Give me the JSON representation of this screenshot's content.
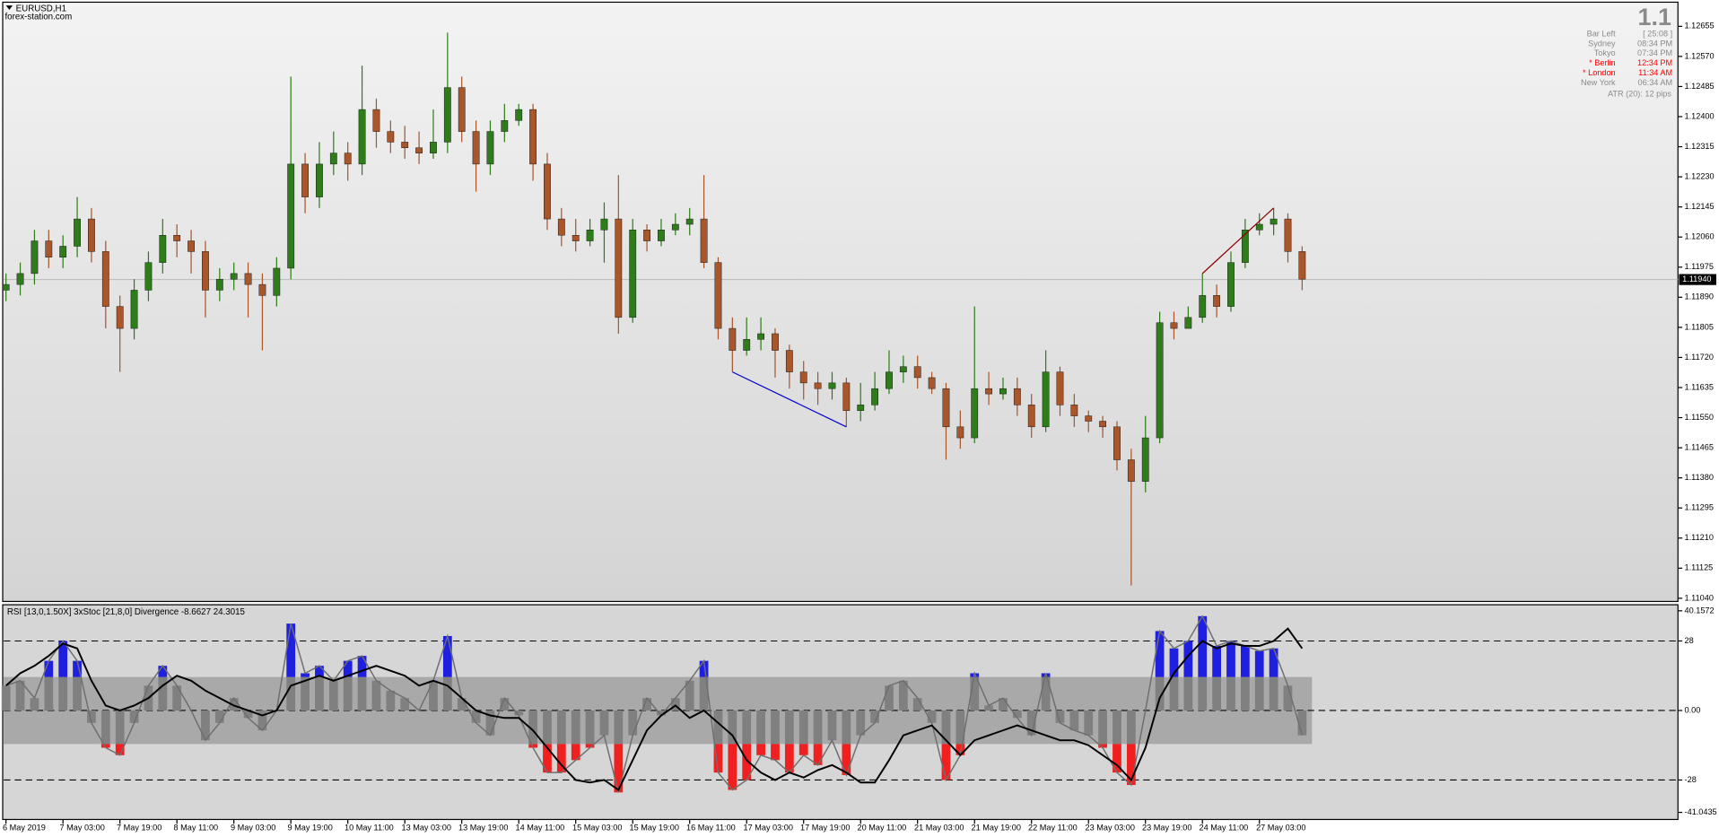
{
  "window": {
    "symbol": "EURUSD,H1",
    "watermark": "forex-station.com"
  },
  "info_panel": {
    "big": "1.1",
    "rows": [
      {
        "label": "Bar Left",
        "value": "[ 25:08 ]",
        "color": "#8a8a8a"
      },
      {
        "label": "Sydney",
        "value": "08:34 PM",
        "color": "#8a8a8a"
      },
      {
        "label": "Tokyo",
        "value": "07:34 PM",
        "color": "#8a8a8a"
      },
      {
        "label": "* Berlin",
        "value": "12:34 PM",
        "color": "#ff0000"
      },
      {
        "label": "* London",
        "value": "11:34 AM",
        "color": "#ff0000"
      },
      {
        "label": "New York",
        "value": "06:34 AM",
        "color": "#8a8a8a"
      }
    ],
    "atr": "ATR (20): 12 pips"
  },
  "chart_data": [
    {
      "type": "candlestick",
      "up_color": "#2e7d1a",
      "down_color": "#a8562a",
      "open": [
        1.1191,
        1.11926,
        1.11957,
        1.12049,
        1.12003,
        1.12034,
        1.12111,
        1.12019,
        1.11864,
        1.11802,
        1.1191,
        1.11988,
        1.12065,
        1.12049,
        1.12019,
        1.1191,
        1.11941,
        1.11957,
        1.11926,
        1.11895,
        1.11972,
        1.12266,
        1.12173,
        1.12266,
        1.12297,
        1.12266,
        1.1242,
        1.12358,
        1.12328,
        1.12312,
        1.12297,
        1.12328,
        1.12482,
        1.12358,
        1.12266,
        1.12358,
        1.12389,
        1.1242,
        1.12266,
        1.12111,
        1.12065,
        1.12049,
        1.1208,
        1.12111,
        1.11833,
        1.1208,
        1.12049,
        1.1208,
        1.12096,
        1.12111,
        1.11988,
        1.11802,
        1.1174,
        1.11771,
        1.11787,
        1.1174,
        1.11679,
        1.11648,
        1.11632,
        1.11648,
        1.1157,
        1.11586,
        1.11632,
        1.11679,
        1.11694,
        1.11663,
        1.11632,
        1.11524,
        1.11493,
        1.11632,
        1.11617,
        1.11632,
        1.11586,
        1.11524,
        1.11679,
        1.11586,
        1.11555,
        1.1154,
        1.11524,
        1.11431,
        1.1137,
        1.11493,
        1.11818,
        1.11802,
        1.11833,
        1.11895,
        1.11864,
        1.11988,
        1.1208,
        1.12096,
        1.12111,
        1.12019
      ],
      "high": [
        1.11957,
        1.11988,
        1.1208,
        1.1208,
        1.12065,
        1.12173,
        1.12142,
        1.12049,
        1.11895,
        1.11941,
        1.12019,
        1.12111,
        1.12096,
        1.1208,
        1.12049,
        1.11972,
        1.11988,
        1.11988,
        1.11957,
        1.12003,
        1.12513,
        1.12297,
        1.12328,
        1.12358,
        1.12328,
        1.12544,
        1.12451,
        1.12389,
        1.12374,
        1.12358,
        1.1242,
        1.12637,
        1.12513,
        1.12389,
        1.12389,
        1.12436,
        1.12436,
        1.12436,
        1.12297,
        1.12142,
        1.12111,
        1.12111,
        1.12158,
        1.12235,
        1.12111,
        1.12096,
        1.12111,
        1.12127,
        1.12142,
        1.12235,
        1.12003,
        1.11833,
        1.11833,
        1.11833,
        1.11802,
        1.11756,
        1.1171,
        1.11679,
        1.11679,
        1.11663,
        1.11648,
        1.11679,
        1.1174,
        1.11725,
        1.11725,
        1.11679,
        1.11648,
        1.1157,
        1.11864,
        1.11679,
        1.11663,
        1.11663,
        1.11617,
        1.1174,
        1.11694,
        1.11617,
        1.1157,
        1.11555,
        1.1154,
        1.11462,
        1.11555,
        1.11849,
        1.11849,
        1.11864,
        1.11957,
        1.11926,
        1.12019,
        1.12111,
        1.12127,
        1.12142,
        1.12127,
        1.12034
      ],
      "low": [
        1.11879,
        1.11895,
        1.11926,
        1.11972,
        1.11972,
        1.12003,
        1.11988,
        1.11802,
        1.11679,
        1.11771,
        1.11879,
        1.11957,
        1.12003,
        1.11957,
        1.11833,
        1.11879,
        1.1191,
        1.11833,
        1.1174,
        1.11864,
        1.11941,
        1.12127,
        1.12142,
        1.12235,
        1.12219,
        1.12235,
        1.12312,
        1.12297,
        1.12281,
        1.12266,
        1.12281,
        1.12297,
        1.12328,
        1.12188,
        1.12235,
        1.12328,
        1.12374,
        1.12219,
        1.1208,
        1.12034,
        1.12019,
        1.12034,
        1.11988,
        1.11787,
        1.11818,
        1.12019,
        1.12034,
        1.12065,
        1.12065,
        1.11972,
        1.11771,
        1.11679,
        1.11725,
        1.1174,
        1.11663,
        1.11632,
        1.11601,
        1.11586,
        1.11601,
        1.11524,
        1.1154,
        1.1157,
        1.11617,
        1.11648,
        1.11632,
        1.11617,
        1.11431,
        1.11462,
        1.11478,
        1.11586,
        1.11601,
        1.11555,
        1.11493,
        1.11509,
        1.11555,
        1.11524,
        1.11509,
        1.11493,
        1.11401,
        1.11076,
        1.11339,
        1.11478,
        1.11771,
        1.11802,
        1.11818,
        1.11833,
        1.11849,
        1.11972,
        1.12065,
        1.12065,
        1.11988,
        1.1191
      ],
      "close": [
        1.11926,
        1.11957,
        1.12049,
        1.12003,
        1.12034,
        1.12111,
        1.12019,
        1.11864,
        1.11802,
        1.1191,
        1.11988,
        1.12065,
        1.12049,
        1.12019,
        1.1191,
        1.11941,
        1.11957,
        1.11926,
        1.11895,
        1.11972,
        1.12266,
        1.12173,
        1.12266,
        1.12297,
        1.12266,
        1.1242,
        1.12358,
        1.12328,
        1.12312,
        1.12297,
        1.12328,
        1.12482,
        1.12358,
        1.12266,
        1.12358,
        1.12389,
        1.1242,
        1.12266,
        1.12111,
        1.12065,
        1.12049,
        1.1208,
        1.12111,
        1.11833,
        1.1208,
        1.12049,
        1.1208,
        1.12096,
        1.12111,
        1.11988,
        1.11802,
        1.1174,
        1.11771,
        1.11787,
        1.1174,
        1.11679,
        1.11648,
        1.11632,
        1.11648,
        1.1157,
        1.11586,
        1.11632,
        1.11679,
        1.11694,
        1.11663,
        1.11632,
        1.11524,
        1.11493,
        1.11632,
        1.11617,
        1.11632,
        1.11586,
        1.11524,
        1.11679,
        1.11586,
        1.11555,
        1.1154,
        1.11524,
        1.11431,
        1.1137,
        1.11493,
        1.11818,
        1.11802,
        1.11833,
        1.11895,
        1.11864,
        1.11988,
        1.1208,
        1.12096,
        1.12111,
        1.12019,
        1.11941
      ],
      "ylim": [
        1.11031,
        1.1272
      ],
      "yticks": [
        {
          "value": 1.12655,
          "label": "1.12655"
        },
        {
          "value": 1.1257,
          "label": "1.12570"
        },
        1.12485,
        {
          "value": 1.124,
          "label": "1.12400"
        },
        1.12315,
        {
          "value": 1.1223,
          "label": "1.12230"
        },
        1.12145,
        {
          "value": 1.1206,
          "label": "1.12060"
        },
        1.11975,
        {
          "value": 1.1189,
          "label": "1.11890"
        },
        1.11805,
        {
          "value": 1.1172,
          "label": "1.11720"
        },
        1.11635,
        {
          "value": 1.1155,
          "label": "1.11550"
        },
        1.11465,
        {
          "value": 1.1138,
          "label": "1.11380"
        },
        1.11295,
        {
          "value": 1.1121,
          "label": "1.11210"
        },
        1.11125,
        {
          "value": 1.1104,
          "label": "1.11040"
        }
      ],
      "xticks": [
        {
          "value": 0,
          "label": "6 May 2019"
        },
        {
          "value": 4,
          "label": "7 May 03:00"
        },
        {
          "value": 8,
          "label": "7 May 19:00"
        },
        {
          "value": 12,
          "label": "8 May 11:00"
        },
        {
          "value": 16,
          "label": "9 May 03:00"
        },
        {
          "value": 20,
          "label": "9 May 19:00"
        },
        {
          "value": 24,
          "label": "10 May 11:00"
        },
        {
          "value": 28,
          "label": "13 May 03:00"
        },
        {
          "value": 32,
          "label": "13 May 19:00"
        },
        {
          "value": 36,
          "label": "14 May 11:00"
        },
        {
          "value": 40,
          "label": "15 May 03:00"
        },
        {
          "value": 44,
          "label": "15 May 19:00"
        },
        {
          "value": 48,
          "label": "16 May 11:00"
        },
        {
          "value": 52,
          "label": "17 May 03:00"
        },
        {
          "value": 56,
          "label": "17 May 19:00"
        },
        {
          "value": 60,
          "label": "20 May 11:00"
        },
        {
          "value": 64,
          "label": "21 May 03:00"
        },
        {
          "value": 68,
          "label": "21 May 19:00"
        },
        {
          "value": 72,
          "label": "22 May 11:00"
        },
        {
          "value": 76,
          "label": "23 May 03:00"
        },
        {
          "value": 80,
          "label": "23 May 19:00"
        },
        {
          "value": 84,
          "label": "24 May 11:00"
        },
        {
          "value": 88,
          "label": "27 May 03:00"
        }
      ],
      "current_price": {
        "value": 1.1194,
        "label": "1.11940"
      },
      "divergences": [
        {
          "from": 51,
          "to": 59,
          "at": "low",
          "color": "#0000cc"
        },
        {
          "from": 84,
          "to": 89,
          "at": "high",
          "color": "#8b0000"
        }
      ]
    },
    {
      "type": "histogram-line",
      "title": "RSI [13,0,1.50X] 3xStoc [21,8,0] Divergence -8.6627 24.3015",
      "band": 13.5,
      "band_color": "#a9a9a9",
      "up_color": "#1f1fe0",
      "down_color": "#f02020",
      "bar_color": "#808080",
      "series": [
        {
          "color": "#6e6e6e",
          "values": [
            10,
            12,
            5,
            20,
            28,
            20,
            -5,
            -15,
            -18,
            -5,
            10,
            18,
            10,
            0,
            -12,
            -5,
            5,
            -3,
            -8,
            0,
            35,
            15,
            18,
            12,
            20,
            22,
            12,
            8,
            5,
            0,
            12,
            30,
            5,
            -5,
            -10,
            5,
            -2,
            -15,
            -25,
            -25,
            -20,
            -15,
            -10,
            -33,
            -10,
            5,
            -2,
            5,
            12,
            20,
            -25,
            -32,
            -28,
            -18,
            -20,
            -25,
            -18,
            -22,
            -12,
            -26,
            -10,
            -5,
            10,
            12,
            5,
            -5,
            -28,
            -18,
            15,
            2,
            5,
            -3,
            -10,
            15,
            -5,
            -8,
            -10,
            -15,
            -25,
            -30,
            0,
            32,
            25,
            28,
            38,
            26,
            28,
            26,
            24,
            25,
            10,
            -10
          ]
        },
        {
          "color": "#000000",
          "values": [
            10,
            15,
            18,
            22,
            27,
            25,
            12,
            2,
            0,
            2,
            5,
            10,
            14,
            12,
            8,
            5,
            2,
            0,
            -2,
            0,
            10,
            12,
            14,
            12,
            14,
            16,
            18,
            16,
            14,
            10,
            12,
            10,
            5,
            0,
            -2,
            -3,
            -3,
            -8,
            -15,
            -22,
            -28,
            -29,
            -28,
            -32,
            -20,
            -8,
            -2,
            2,
            -3,
            0,
            -5,
            -10,
            -20,
            -25,
            -28,
            -25,
            -27,
            -24,
            -22,
            -25,
            -29,
            -29,
            -20,
            -10,
            -8,
            -6,
            -12,
            -18,
            -12,
            -10,
            -8,
            -6,
            -8,
            -10,
            -12,
            -12,
            -14,
            -18,
            -22,
            -28,
            -15,
            5,
            15,
            22,
            28,
            25,
            27,
            26,
            26,
            28,
            33,
            25
          ]
        }
      ],
      "ylim": [
        -43.9,
        42.6
      ],
      "yticks": [
        40.1572,
        28,
        {
          "value": 0,
          "label": "0.00"
        },
        -28,
        -41.0435
      ],
      "dashed_ticks": [
        1,
        2,
        3
      ]
    }
  ]
}
